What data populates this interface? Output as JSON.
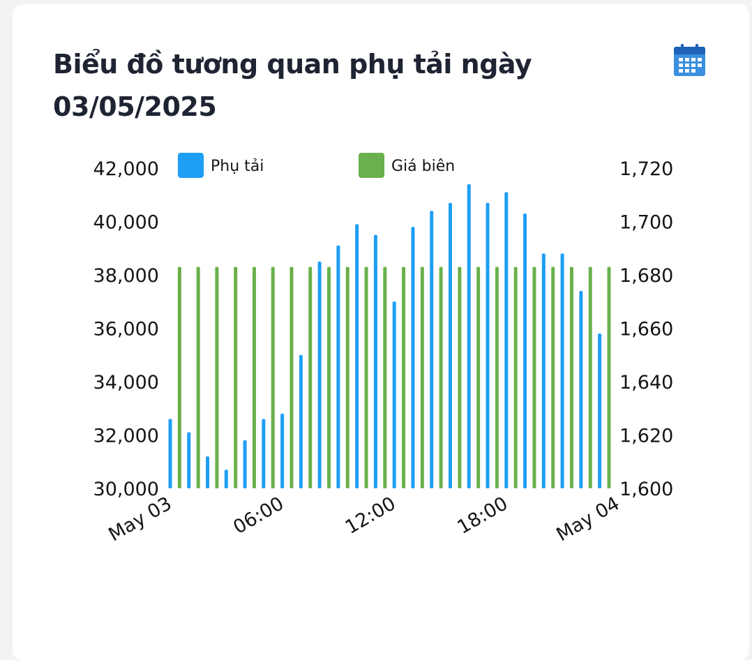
{
  "header": {
    "title_line1": "Biểu đồ tương quan phụ tải ngày",
    "title_line2": "03/05/2025",
    "calendar_icon": "calendar-icon"
  },
  "colors": {
    "load": "#1e9ef5",
    "price": "#6ab04c"
  },
  "chart_data": {
    "type": "bar",
    "x": [
      "00:00",
      "00:30",
      "01:00",
      "01:30",
      "02:00",
      "02:30",
      "03:00",
      "03:30",
      "04:00",
      "04:30",
      "05:00",
      "05:30",
      "06:00",
      "06:30",
      "07:00",
      "07:30",
      "08:00",
      "08:30",
      "09:00",
      "09:30",
      "10:00",
      "10:30",
      "11:00",
      "11:30",
      "12:00",
      "12:30",
      "13:00",
      "13:30",
      "14:00",
      "14:30",
      "15:00",
      "15:30",
      "16:00",
      "16:30",
      "17:00",
      "17:30",
      "18:00",
      "18:30",
      "19:00",
      "19:30",
      "20:00",
      "20:30",
      "21:00",
      "21:30",
      "22:00",
      "22:30",
      "23:00",
      "23:30"
    ],
    "x_tick_labels": [
      "May 03",
      "06:00",
      "12:00",
      "18:00",
      "May 04"
    ],
    "series": [
      {
        "name": "Phụ tải",
        "axis": "left",
        "x": [
          "00:00",
          "01:00",
          "02:00",
          "03:00",
          "04:00",
          "05:00",
          "06:00",
          "07:00",
          "08:00",
          "09:00",
          "10:00",
          "11:00",
          "12:00",
          "13:00",
          "14:00",
          "15:00",
          "16:00",
          "17:00",
          "18:00",
          "19:00",
          "20:00",
          "21:00",
          "22:00",
          "23:00",
          "23:30"
        ],
        "values": [
          32600,
          32100,
          31200,
          30700,
          31800,
          32600,
          32800,
          35000,
          38500,
          39100,
          39900,
          39500,
          37000,
          39800,
          40400,
          40700,
          41400,
          40700,
          41100,
          40300,
          38800,
          38800,
          37400,
          35800,
          34200
        ]
      },
      {
        "name": "Giá biên",
        "axis": "right",
        "x": [
          "00:30",
          "01:30",
          "02:30",
          "03:30",
          "04:30",
          "05:30",
          "06:30",
          "07:30",
          "08:30",
          "09:30",
          "10:30",
          "11:30",
          "12:30",
          "13:30",
          "14:30",
          "15:30",
          "16:30",
          "17:30",
          "18:30",
          "19:30",
          "20:30",
          "21:30",
          "22:30",
          "23:30"
        ],
        "values": [
          1683,
          1683,
          1683,
          1683,
          1683,
          1683,
          1683,
          1683,
          1683,
          1683,
          1683,
          1683,
          1683,
          1683,
          1683,
          1683,
          1683,
          1683,
          1683,
          1683,
          1683,
          1683,
          1683,
          1683
        ]
      }
    ],
    "y_left": {
      "ticks": [
        "30,000",
        "32,000",
        "34,000",
        "36,000",
        "38,000",
        "40,000",
        "42,000"
      ],
      "ylim": [
        30000,
        42000
      ]
    },
    "y_right": {
      "ticks": [
        "1,600",
        "1,620",
        "1,640",
        "1,660",
        "1,680",
        "1,700",
        "1,720"
      ],
      "ylim": [
        1600,
        1720
      ]
    },
    "legend": {
      "placement": "top",
      "entries": [
        "Phụ tải",
        "Giá biên"
      ]
    },
    "grid": false
  }
}
